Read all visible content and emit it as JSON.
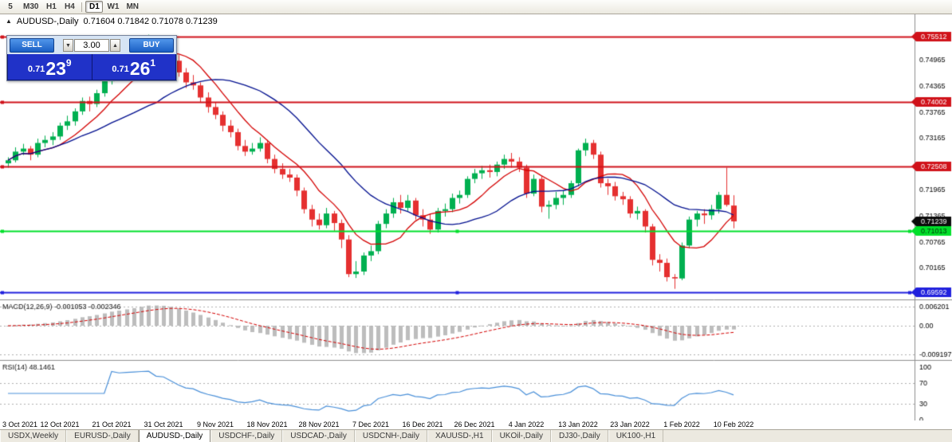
{
  "icons": {
    "panel_toggle": "▲",
    "volume_up": "▲",
    "volume_down": "▼"
  },
  "toolbar": {
    "timeframes": [
      {
        "label": "5",
        "active": false,
        "sep_after": false
      },
      {
        "label": "M30",
        "active": false,
        "sep_after": false
      },
      {
        "label": "H1",
        "active": false,
        "sep_after": false
      },
      {
        "label": "H4",
        "active": false,
        "sep_after": true
      },
      {
        "label": "D1",
        "active": true,
        "sep_after": false
      },
      {
        "label": "W1",
        "active": false,
        "sep_after": false
      },
      {
        "label": "MN",
        "active": false,
        "sep_after": false
      }
    ]
  },
  "chart_header": {
    "symbol_title": "AUDUSD-,Daily",
    "ohlc_text": "0.71604 0.71842 0.71078 0.71239"
  },
  "trade_panel": {
    "sell_label": "SELL",
    "buy_label": "BUY",
    "volume": "3.00",
    "sell_price": {
      "prefix": "0.71",
      "big": "23",
      "sup": "9"
    },
    "buy_price": {
      "prefix": "0.71",
      "big": "26",
      "sup": "1"
    }
  },
  "price_axis": {
    "ticks": [
      0.74965,
      0.74365,
      0.73765,
      0.73165,
      0.72565,
      0.71965,
      0.71365,
      0.70765,
      0.70165
    ],
    "badges": [
      {
        "text": "0.75512",
        "value": 0.75512,
        "bg": "#d0121a",
        "fg": "#ffffff"
      },
      {
        "text": "0.74002",
        "value": 0.74002,
        "bg": "#d0121a",
        "fg": "#ffffff"
      },
      {
        "text": "0.72508",
        "value": 0.72508,
        "bg": "#d0121a",
        "fg": "#ffffff"
      },
      {
        "text": "0.71239",
        "value": 0.71239,
        "bg": "#0a0a0a",
        "fg": "#ffffff"
      },
      {
        "text": "0.71013",
        "value": 0.71013,
        "bg": "#00e02a",
        "fg": "#00320a"
      },
      {
        "text": "0.69592",
        "value": 0.69592,
        "bg": "#2020dd",
        "fg": "#ffffff"
      }
    ]
  },
  "colors": {
    "candle_up": "#00b050",
    "candle_down": "#e53030",
    "ma_fast": "#d40000",
    "ma_slow": "#000e8e",
    "macd_hist": "#bdbdbd",
    "macd_signal": "#d40000",
    "rsi_line": "#4a90d9",
    "grid_dotted": "#b0b0b0",
    "separator": "#8e8e8e"
  },
  "chart_data": {
    "type": "candlestick",
    "symbol": "AUDUSD-",
    "timeframe": "Daily",
    "title": "AUDUSD-,Daily",
    "ohlc_display": {
      "open": "0.71604",
      "high": "0.71842",
      "low": "0.71078",
      "close": "0.71239"
    },
    "ylim": [
      0.6944,
      0.7602
    ],
    "x_label_interval": 7,
    "x_labels": [
      "3 Oct 2021",
      "12 Oct 2021",
      "21 Oct 2021",
      "31 Oct 2021",
      "9 Nov 2021",
      "18 Nov 2021",
      "28 Nov 2021",
      "7 Dec 2021",
      "16 Dec 2021",
      "26 Dec 2021",
      "4 Jan 2022",
      "13 Jan 2022",
      "23 Jan 2022",
      "1 Feb 2022",
      "10 Feb 2022"
    ],
    "horizontal_levels": [
      {
        "value": 0.75512,
        "color": "#d0121a",
        "width": 2,
        "handles": "left"
      },
      {
        "value": 0.74002,
        "color": "#d0121a",
        "width": 2,
        "handles": "left"
      },
      {
        "value": 0.72508,
        "color": "#d0121a",
        "width": 2,
        "handles": "left"
      },
      {
        "value": 0.71013,
        "color": "#00e02a",
        "width": 2,
        "handles": "three"
      },
      {
        "value": 0.69592,
        "color": "#2020dd",
        "width": 2,
        "handles": "three"
      }
    ],
    "overlays": [
      {
        "name": "ma-fast",
        "type": "sma",
        "period": 8,
        "color": "#d40000"
      },
      {
        "name": "ma-slow",
        "type": "sma",
        "period": 21,
        "color": "#000e8e"
      }
    ],
    "indicators": [
      {
        "name": "MACD",
        "label": "MACD(12,26,9) -0.001053 -0.002346",
        "params": [
          12,
          26,
          9
        ],
        "values_text": [
          "-0.001053",
          "-0.002346"
        ],
        "axis_labels": [
          {
            "text": "0.006201",
            "value": 0.006201
          },
          {
            "text": "0.00",
            "value": 0
          },
          {
            "text": "-0.009197",
            "value": -0.009197
          }
        ]
      },
      {
        "name": "RSI",
        "label": "RSI(14) 48.1461",
        "period": 14,
        "value_text": "48.1461",
        "axis_labels": [
          {
            "text": "100",
            "value": 100
          },
          {
            "text": "70",
            "value": 70
          },
          {
            "text": "30",
            "value": 30
          },
          {
            "text": "0",
            "value": 0
          }
        ],
        "levels": [
          70,
          30
        ]
      }
    ],
    "candles": [
      [
        0.7258,
        0.7272,
        0.7248,
        0.7265
      ],
      [
        0.7265,
        0.7295,
        0.726,
        0.7285
      ],
      [
        0.7285,
        0.7303,
        0.7277,
        0.7292
      ],
      [
        0.7292,
        0.7298,
        0.7265,
        0.7278
      ],
      [
        0.7278,
        0.7315,
        0.7272,
        0.7305
      ],
      [
        0.7305,
        0.7322,
        0.7295,
        0.7312
      ],
      [
        0.7312,
        0.733,
        0.73,
        0.732
      ],
      [
        0.732,
        0.7352,
        0.7312,
        0.7345
      ],
      [
        0.7345,
        0.7368,
        0.7335,
        0.7355
      ],
      [
        0.7355,
        0.7385,
        0.7345,
        0.7378
      ],
      [
        0.7378,
        0.741,
        0.737,
        0.7402
      ],
      [
        0.7402,
        0.7412,
        0.7378,
        0.7395
      ],
      [
        0.7395,
        0.7428,
        0.7388,
        0.742
      ],
      [
        0.742,
        0.7455,
        0.7412,
        0.7448
      ],
      [
        0.7448,
        0.7482,
        0.744,
        0.7475
      ],
      [
        0.7475,
        0.7485,
        0.7452,
        0.7468
      ],
      [
        0.7468,
        0.75,
        0.746,
        0.7492
      ],
      [
        0.7492,
        0.7522,
        0.7485,
        0.751
      ],
      [
        0.751,
        0.7542,
        0.7502,
        0.7535
      ],
      [
        0.7535,
        0.7555,
        0.7528,
        0.7548
      ],
      [
        0.7548,
        0.7552,
        0.7512,
        0.7522
      ],
      [
        0.7522,
        0.7535,
        0.7508,
        0.7518
      ],
      [
        0.7518,
        0.7525,
        0.7485,
        0.7495
      ],
      [
        0.7495,
        0.7508,
        0.7458,
        0.7468
      ],
      [
        0.7468,
        0.7478,
        0.7432,
        0.7445
      ],
      [
        0.7445,
        0.7462,
        0.7428,
        0.7438
      ],
      [
        0.7438,
        0.7445,
        0.7398,
        0.741
      ],
      [
        0.741,
        0.7422,
        0.7375,
        0.7388
      ],
      [
        0.7388,
        0.7398,
        0.736,
        0.737
      ],
      [
        0.737,
        0.7378,
        0.7332,
        0.7345
      ],
      [
        0.7345,
        0.7358,
        0.7318,
        0.733
      ],
      [
        0.733,
        0.7338,
        0.7288,
        0.7298
      ],
      [
        0.7298,
        0.7312,
        0.7275,
        0.7285
      ],
      [
        0.7285,
        0.7305,
        0.7278,
        0.7292
      ],
      [
        0.7292,
        0.7318,
        0.7285,
        0.7305
      ],
      [
        0.7305,
        0.7312,
        0.7258,
        0.7268
      ],
      [
        0.7268,
        0.7278,
        0.7235,
        0.7245
      ],
      [
        0.7245,
        0.7258,
        0.7222,
        0.7232
      ],
      [
        0.7232,
        0.7245,
        0.7215,
        0.7225
      ],
      [
        0.7225,
        0.7232,
        0.7182,
        0.7195
      ],
      [
        0.7195,
        0.7202,
        0.7142,
        0.7152
      ],
      [
        0.7152,
        0.7162,
        0.7112,
        0.7128
      ],
      [
        0.7128,
        0.7142,
        0.7105,
        0.7115
      ],
      [
        0.7115,
        0.7155,
        0.7108,
        0.7142
      ],
      [
        0.7142,
        0.7148,
        0.7102,
        0.712
      ],
      [
        0.712,
        0.7128,
        0.7062,
        0.7082
      ],
      [
        0.7082,
        0.7092,
        0.6995,
        0.7002
      ],
      [
        0.7002,
        0.7032,
        0.6993,
        0.7008
      ],
      [
        0.7008,
        0.7052,
        0.7,
        0.7045
      ],
      [
        0.7045,
        0.7068,
        0.7032,
        0.7055
      ],
      [
        0.7055,
        0.7125,
        0.7048,
        0.7118
      ],
      [
        0.7118,
        0.7152,
        0.7108,
        0.7142
      ],
      [
        0.7142,
        0.7178,
        0.7132,
        0.7168
      ],
      [
        0.7168,
        0.7185,
        0.7142,
        0.7155
      ],
      [
        0.7155,
        0.7185,
        0.7148,
        0.7172
      ],
      [
        0.7172,
        0.7178,
        0.7128,
        0.7138
      ],
      [
        0.7138,
        0.7152,
        0.7112,
        0.7128
      ],
      [
        0.7128,
        0.7142,
        0.7095,
        0.7105
      ],
      [
        0.7105,
        0.7155,
        0.7098,
        0.7148
      ],
      [
        0.7148,
        0.7165,
        0.7135,
        0.7152
      ],
      [
        0.7152,
        0.7188,
        0.7145,
        0.7178
      ],
      [
        0.7178,
        0.7195,
        0.7165,
        0.7185
      ],
      [
        0.7185,
        0.7228,
        0.7178,
        0.7222
      ],
      [
        0.7222,
        0.7245,
        0.7212,
        0.7235
      ],
      [
        0.7235,
        0.7252,
        0.7222,
        0.7242
      ],
      [
        0.7242,
        0.7255,
        0.7225,
        0.7238
      ],
      [
        0.7238,
        0.7262,
        0.7228,
        0.7255
      ],
      [
        0.7255,
        0.7278,
        0.7245,
        0.7268
      ],
      [
        0.7268,
        0.7282,
        0.7248,
        0.7262
      ],
      [
        0.7262,
        0.7272,
        0.7238,
        0.7248
      ],
      [
        0.7248,
        0.7255,
        0.7178,
        0.7188
      ],
      [
        0.7188,
        0.7232,
        0.7182,
        0.7222
      ],
      [
        0.7222,
        0.7228,
        0.7145,
        0.7158
      ],
      [
        0.7158,
        0.7172,
        0.713,
        0.7162
      ],
      [
        0.7162,
        0.7192,
        0.7152,
        0.7178
      ],
      [
        0.7178,
        0.7195,
        0.7162,
        0.7185
      ],
      [
        0.7185,
        0.7218,
        0.7178,
        0.7212
      ],
      [
        0.7212,
        0.7292,
        0.7205,
        0.7288
      ],
      [
        0.7288,
        0.7315,
        0.7275,
        0.7305
      ],
      [
        0.7305,
        0.7312,
        0.7268,
        0.7278
      ],
      [
        0.7278,
        0.7285,
        0.7202,
        0.7212
      ],
      [
        0.7212,
        0.7222,
        0.7185,
        0.7205
      ],
      [
        0.7205,
        0.7215,
        0.7172,
        0.7182
      ],
      [
        0.7182,
        0.7192,
        0.7162,
        0.7175
      ],
      [
        0.7175,
        0.7182,
        0.7132,
        0.7142
      ],
      [
        0.7142,
        0.7158,
        0.7128,
        0.7148
      ],
      [
        0.7148,
        0.7152,
        0.7098,
        0.7112
      ],
      [
        0.7112,
        0.7118,
        0.7022,
        0.7035
      ],
      [
        0.7035,
        0.7048,
        0.7008,
        0.7028
      ],
      [
        0.7028,
        0.7038,
        0.6985,
        0.6995
      ],
      [
        0.6995,
        0.7002,
        0.6968,
        0.6992
      ],
      [
        0.6992,
        0.7075,
        0.6988,
        0.7068
      ],
      [
        0.7068,
        0.7135,
        0.7062,
        0.7128
      ],
      [
        0.7128,
        0.7148,
        0.7112,
        0.7142
      ],
      [
        0.7142,
        0.7152,
        0.7118,
        0.7138
      ],
      [
        0.7138,
        0.7162,
        0.7128,
        0.7152
      ],
      [
        0.7152,
        0.7192,
        0.7142,
        0.7185
      ],
      [
        0.7185,
        0.7248,
        0.7158,
        0.7162
      ],
      [
        0.71604,
        0.71842,
        0.71078,
        0.71239
      ]
    ]
  },
  "tabs": [
    {
      "label": "USDX,Weekly",
      "active": false
    },
    {
      "label": "EURUSD-,Daily",
      "active": false
    },
    {
      "label": "AUDUSD-,Daily",
      "active": true
    },
    {
      "label": "USDCHF-,Daily",
      "active": false
    },
    {
      "label": "USDCAD-,Daily",
      "active": false
    },
    {
      "label": "USDCNH-,Daily",
      "active": false
    },
    {
      "label": "XAUUSD-,H1",
      "active": false
    },
    {
      "label": "UKOil-,Daily",
      "active": false
    },
    {
      "label": "DJ30-,Daily",
      "active": false
    },
    {
      "label": "UK100-,H1",
      "active": false
    }
  ]
}
